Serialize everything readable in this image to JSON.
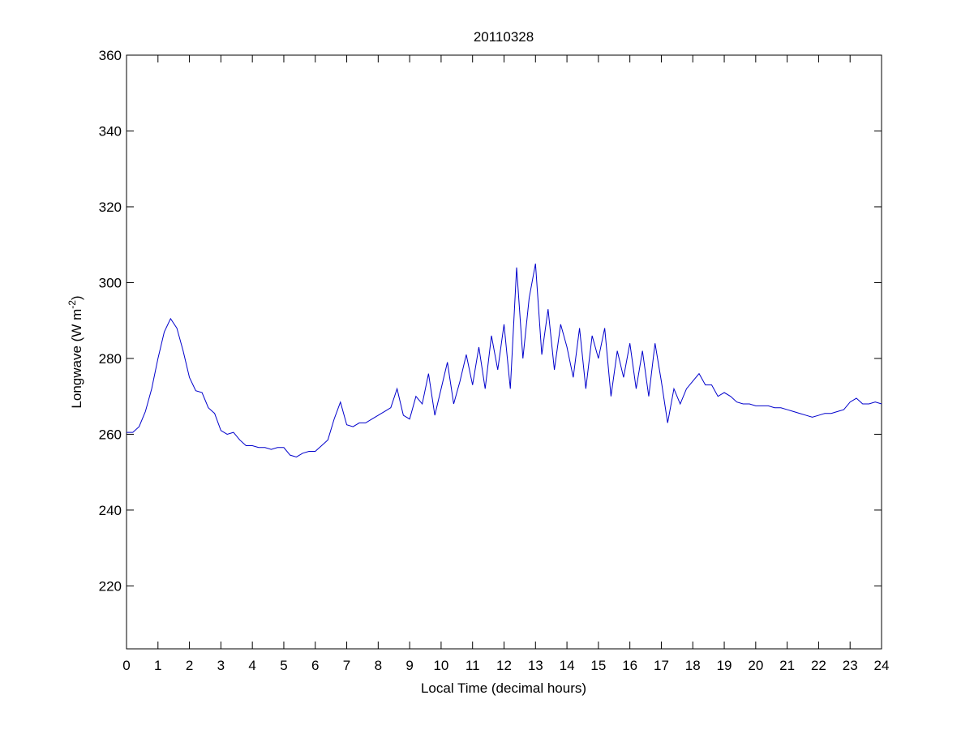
{
  "chart_data": {
    "type": "line",
    "title": "20110328",
    "x_label": "Local Time (decimal hours)",
    "y_label": {
      "text": "Longwave (W m",
      "superscript": "-2",
      "suffix": ")"
    },
    "color": "#0000cc",
    "xlim": [
      0,
      24
    ],
    "ylim": [
      203.4,
      360
    ],
    "xticks": [
      0,
      1,
      2,
      3,
      4,
      5,
      6,
      7,
      8,
      9,
      10,
      11,
      12,
      13,
      14,
      15,
      16,
      17,
      18,
      19,
      20,
      21,
      22,
      23,
      24
    ],
    "yticks": [
      220,
      240,
      260,
      280,
      300,
      320,
      340,
      360
    ],
    "grid": false,
    "x": [
      0,
      0.2,
      0.4,
      0.6,
      0.8,
      1,
      1.2,
      1.4,
      1.6,
      1.8,
      2,
      2.2,
      2.4,
      2.6,
      2.8,
      3,
      3.2,
      3.4,
      3.6,
      3.8,
      4,
      4.2,
      4.4,
      4.6,
      4.8,
      5,
      5.2,
      5.4,
      5.6,
      5.8,
      6,
      6.2,
      6.4,
      6.6,
      6.8,
      7,
      7.2,
      7.4,
      7.6,
      7.8,
      8,
      8.2,
      8.4,
      8.6,
      8.8,
      9,
      9.2,
      9.4,
      9.6,
      9.8,
      10,
      10.2,
      10.4,
      10.6,
      10.8,
      11,
      11.2,
      11.4,
      11.6,
      11.8,
      12,
      12.2,
      12.4,
      12.6,
      12.8,
      13,
      13.2,
      13.4,
      13.6,
      13.8,
      14,
      14.2,
      14.4,
      14.6,
      14.8,
      15,
      15.2,
      15.4,
      15.6,
      15.8,
      16,
      16.2,
      16.4,
      16.6,
      16.8,
      17,
      17.2,
      17.4,
      17.6,
      17.8,
      18,
      18.2,
      18.4,
      18.6,
      18.8,
      19,
      19.2,
      19.4,
      19.6,
      19.8,
      20,
      20.2,
      20.4,
      20.6,
      20.8,
      21,
      21.2,
      21.4,
      21.6,
      21.8,
      22,
      22.2,
      22.4,
      22.6,
      22.8,
      23,
      23.2,
      23.4,
      23.6,
      23.8,
      24
    ],
    "values": [
      260.5,
      260.5,
      262,
      266,
      272,
      280,
      287,
      290.5,
      288,
      282,
      275,
      271.5,
      271,
      267,
      265.5,
      261,
      260,
      260.5,
      258.5,
      257,
      257,
      256.5,
      256.5,
      256,
      256.5,
      256.5,
      254.5,
      254,
      255,
      255.5,
      255.5,
      257,
      258.5,
      264,
      268.5,
      262.5,
      262,
      263,
      263,
      264,
      265,
      266,
      267,
      272,
      265,
      264,
      270,
      268,
      276,
      265,
      272,
      279,
      268,
      274,
      281,
      273,
      283,
      272,
      286,
      277,
      289,
      272,
      304,
      280,
      296,
      305,
      281,
      293,
      277,
      289,
      283,
      275,
      288,
      272,
      286,
      280,
      288,
      270,
      282,
      275,
      284,
      272,
      282,
      270,
      284,
      274,
      263,
      272,
      268,
      272,
      274,
      276,
      273,
      273,
      270,
      271,
      270,
      268.5,
      268,
      268,
      267.5,
      267.5,
      267.5,
      267,
      267,
      266.5,
      266,
      265.5,
      265,
      264.5,
      265,
      265.5,
      265.5,
      266,
      266.5,
      268.5,
      269.5,
      268,
      268,
      268.5,
      268
    ]
  }
}
